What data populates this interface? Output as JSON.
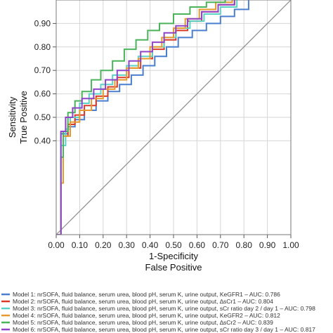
{
  "chart_data": {
    "type": "line",
    "title": "",
    "xlabel": "1-Specificity",
    "xlabel2": "False Positive",
    "ylabel": "Sensitivity",
    "ylabel2": "True Positive",
    "xlim": [
      0,
      1
    ],
    "ylim": [
      0,
      1
    ],
    "grid": true,
    "x_ticks": [
      "0.00",
      "0.10",
      "0.20",
      "0.30",
      "0.40",
      "0.50",
      "0.60",
      "0.70",
      "0.80",
      "0.90",
      "1.00"
    ],
    "y_ticks": [
      "0.40",
      "0.50",
      "0.60",
      "0.70",
      "0.80",
      "0.90"
    ],
    "y_tick_values": [
      0.4,
      0.5,
      0.6,
      0.7,
      0.8,
      0.9
    ],
    "legend_position": "bottom",
    "reference_line": {
      "x": [
        0,
        1
      ],
      "y": [
        0,
        1
      ],
      "color": "#8c8c8c"
    },
    "series": [
      {
        "name": "Model 1: nrSOFA, fluid balance, serum urea, blood pH, serum K, urine output, KeGFR1 – AUC: 0.786",
        "color": "#4a7fd0",
        "x": [
          0,
          0.02,
          0.02,
          0.05,
          0.05,
          0.08,
          0.08,
          0.12,
          0.12,
          0.17,
          0.17,
          0.22,
          0.22,
          0.27,
          0.27,
          0.32,
          0.32,
          0.37,
          0.37,
          0.42,
          0.42,
          0.47,
          0.47,
          0.52,
          0.52,
          0.58,
          0.58,
          0.64,
          0.64,
          0.7,
          0.7,
          0.76,
          0.76,
          0.82,
          0.82
        ],
        "y": [
          0,
          0,
          0.43,
          0.43,
          0.46,
          0.46,
          0.49,
          0.49,
          0.53,
          0.53,
          0.57,
          0.57,
          0.61,
          0.61,
          0.64,
          0.64,
          0.68,
          0.68,
          0.72,
          0.72,
          0.76,
          0.76,
          0.8,
          0.8,
          0.84,
          0.84,
          0.87,
          0.87,
          0.9,
          0.9,
          0.93,
          0.93,
          0.96,
          0.96,
          1.0
        ]
      },
      {
        "name": "Model 2: nrSOFA, fluid balance, serum urea, blood pH, serum K, urine output, ∆sCr1 – AUC: 0.804",
        "color": "#d83b2a",
        "x": [
          0,
          0.02,
          0.02,
          0.03,
          0.03,
          0.05,
          0.05,
          0.08,
          0.08,
          0.12,
          0.12,
          0.17,
          0.17,
          0.22,
          0.22,
          0.26,
          0.26,
          0.31,
          0.31,
          0.36,
          0.36,
          0.41,
          0.41,
          0.46,
          0.46,
          0.51,
          0.51,
          0.56,
          0.56,
          0.62,
          0.62,
          0.69,
          0.69,
          0.76,
          0.76
        ],
        "y": [
          0,
          0,
          0.22,
          0.22,
          0.42,
          0.42,
          0.47,
          0.47,
          0.51,
          0.51,
          0.55,
          0.55,
          0.59,
          0.59,
          0.63,
          0.63,
          0.67,
          0.67,
          0.71,
          0.71,
          0.75,
          0.75,
          0.79,
          0.79,
          0.83,
          0.83,
          0.87,
          0.87,
          0.91,
          0.91,
          0.95,
          0.95,
          0.98,
          0.98,
          1.0
        ]
      },
      {
        "name": "Model 3: nrSOFA, fluid balance, serum urea, blood pH, serum K, urine output, sCr ratio day 2 / day 1 – AUC: 0.798",
        "color": "#5ad3c6",
        "x": [
          0,
          0.02,
          0.02,
          0.04,
          0.04,
          0.06,
          0.06,
          0.1,
          0.1,
          0.14,
          0.14,
          0.19,
          0.19,
          0.24,
          0.24,
          0.3,
          0.3,
          0.35,
          0.35,
          0.41,
          0.41,
          0.46,
          0.46,
          0.51,
          0.51,
          0.57,
          0.57,
          0.63,
          0.63,
          0.7,
          0.7,
          0.77,
          0.77
        ],
        "y": [
          0,
          0,
          0.38,
          0.38,
          0.45,
          0.45,
          0.5,
          0.5,
          0.56,
          0.56,
          0.6,
          0.6,
          0.64,
          0.64,
          0.68,
          0.68,
          0.72,
          0.72,
          0.76,
          0.76,
          0.8,
          0.8,
          0.84,
          0.84,
          0.88,
          0.88,
          0.91,
          0.91,
          0.94,
          0.94,
          0.97,
          0.97,
          1.0
        ]
      },
      {
        "name": "Model 4: nrSOFA, fluid balance, serum urea, blood pH, serum K, urine output, KeGFR2 – AUC: 0.812",
        "color": "#e69a2e",
        "x": [
          0,
          0.02,
          0.02,
          0.03,
          0.03,
          0.06,
          0.06,
          0.1,
          0.1,
          0.15,
          0.15,
          0.2,
          0.2,
          0.25,
          0.25,
          0.3,
          0.3,
          0.35,
          0.35,
          0.4,
          0.4,
          0.45,
          0.45,
          0.5,
          0.5,
          0.55,
          0.55,
          0.61,
          0.61,
          0.68,
          0.68,
          0.75,
          0.75
        ],
        "y": [
          0,
          0,
          0.22,
          0.22,
          0.42,
          0.42,
          0.48,
          0.48,
          0.53,
          0.53,
          0.58,
          0.58,
          0.62,
          0.62,
          0.66,
          0.66,
          0.71,
          0.71,
          0.75,
          0.75,
          0.8,
          0.8,
          0.84,
          0.84,
          0.88,
          0.88,
          0.92,
          0.92,
          0.96,
          0.96,
          0.99,
          0.99,
          1.0
        ]
      },
      {
        "name": "Model 5: nrSOFA, fluid balance, serum urea, blood pH, serum K, urine output, ∆sCr2 – AUC: 0.839",
        "color": "#4bb35a",
        "x": [
          0,
          0.02,
          0.02,
          0.03,
          0.03,
          0.05,
          0.05,
          0.08,
          0.08,
          0.11,
          0.11,
          0.15,
          0.15,
          0.19,
          0.19,
          0.24,
          0.24,
          0.29,
          0.29,
          0.34,
          0.34,
          0.39,
          0.39,
          0.44,
          0.44,
          0.5,
          0.5,
          0.57,
          0.57,
          0.64,
          0.64,
          0.72,
          0.72
        ],
        "y": [
          0,
          0,
          0.33,
          0.33,
          0.44,
          0.44,
          0.52,
          0.52,
          0.57,
          0.57,
          0.61,
          0.61,
          0.66,
          0.66,
          0.7,
          0.7,
          0.74,
          0.74,
          0.79,
          0.79,
          0.83,
          0.83,
          0.87,
          0.87,
          0.9,
          0.9,
          0.94,
          0.94,
          0.97,
          0.97,
          0.99,
          0.99,
          1.0
        ]
      },
      {
        "name": "Model 6: nrSOFA, fluid balance, serum urea, blood pH, serum K, urine output, sCr ratio day 3 / day 1 – AUC: 0.817",
        "color": "#8e44c7",
        "x": [
          0,
          0.02,
          0.02,
          0.04,
          0.04,
          0.07,
          0.07,
          0.11,
          0.11,
          0.16,
          0.16,
          0.21,
          0.21,
          0.26,
          0.26,
          0.31,
          0.31,
          0.36,
          0.36,
          0.41,
          0.41,
          0.46,
          0.46,
          0.51,
          0.51,
          0.56,
          0.56,
          0.62,
          0.62,
          0.69,
          0.69,
          0.76,
          0.76
        ],
        "y": [
          0,
          0,
          0.44,
          0.44,
          0.5,
          0.5,
          0.54,
          0.54,
          0.58,
          0.58,
          0.62,
          0.62,
          0.66,
          0.66,
          0.7,
          0.7,
          0.74,
          0.74,
          0.78,
          0.78,
          0.82,
          0.82,
          0.86,
          0.86,
          0.89,
          0.89,
          0.92,
          0.92,
          0.95,
          0.95,
          0.98,
          0.98,
          1.0
        ]
      }
    ]
  }
}
